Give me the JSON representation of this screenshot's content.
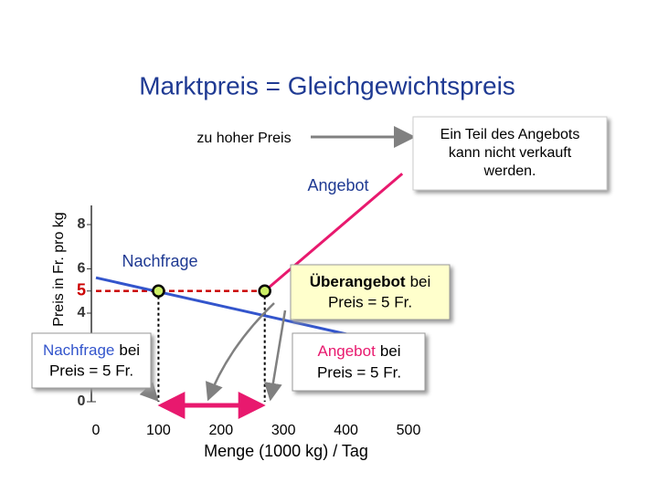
{
  "chart_data": {
    "type": "line",
    "title": "Marktpreis = Gleichgewichtspreis",
    "xlabel": "Menge (1000 kg) / Tag",
    "ylabel": "Preis in Fr. pro kg",
    "xlim": [
      0,
      500
    ],
    "ylim": [
      0,
      8
    ],
    "xticks": [
      0,
      100,
      200,
      300,
      400,
      500
    ],
    "yticks": [
      0,
      4,
      5,
      6,
      8
    ],
    "series": [
      {
        "name": "Nachfrage",
        "color": "#3355cc",
        "x": [
          0,
          425
        ],
        "values": [
          5.6,
          2.9
        ]
      },
      {
        "name": "Angebot",
        "color": "#e8196e",
        "x": [
          270,
          490
        ],
        "values": [
          5,
          10.3
        ]
      }
    ],
    "price_line": {
      "value": 5,
      "color": "#cc0000"
    },
    "markers": {
      "x": [
        100,
        270
      ],
      "values": [
        5,
        5
      ],
      "color": "#ccee66"
    },
    "annotations": {
      "too_high": "zu hoher Preis",
      "callout": [
        "Ein Teil des Angebots",
        "kann nicht verkauft",
        "werden."
      ],
      "surplus": {
        "bold": "Überangebot",
        "rest": "bei",
        "line2": "Preis = 5 Fr."
      },
      "demand_box": {
        "head": "Nachfrage",
        "rest": "bei",
        "line2": "Preis = 5 Fr."
      },
      "supply_box": {
        "head": "Angebot",
        "rest": "bei",
        "line2": "Preis = 5 Fr."
      }
    }
  }
}
